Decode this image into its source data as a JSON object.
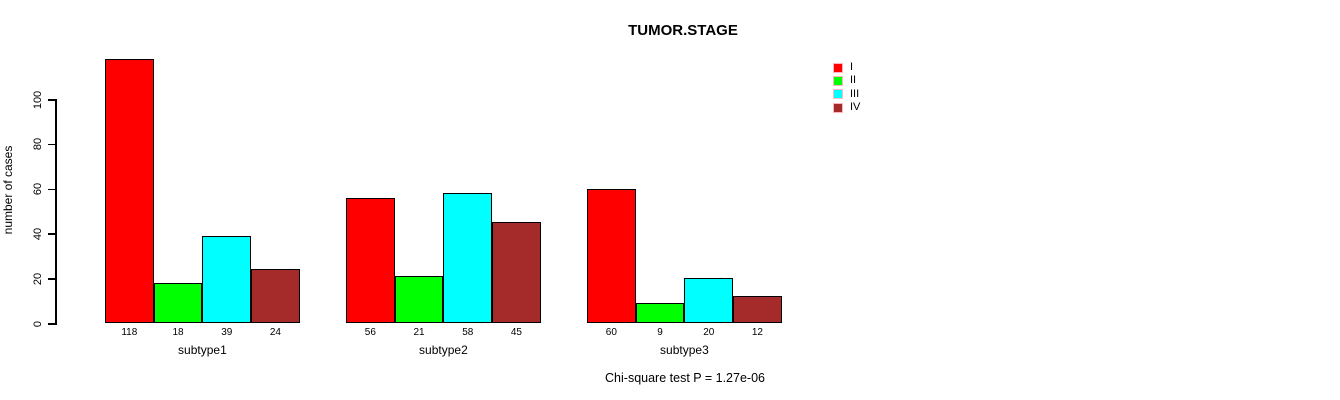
{
  "title": "TUMOR.STAGE",
  "annotation": "Chi-square test P = 1.27e-06",
  "ylabel": "number of cases",
  "legend": {
    "entries": [
      {
        "label": "I",
        "color": "#FF0000"
      },
      {
        "label": "II",
        "color": "#00FF00"
      },
      {
        "label": "III",
        "color": "#00FFFF"
      },
      {
        "label": "IV",
        "color": "#A52A2A"
      }
    ]
  },
  "chart_data": {
    "type": "bar",
    "title": "TUMOR.STAGE",
    "xlabel": "",
    "ylabel": "number of cases",
    "categories": [
      "subtype1",
      "subtype2",
      "subtype3"
    ],
    "series": [
      {
        "name": "I",
        "color": "#FF0000",
        "values": [
          118,
          56,
          60
        ]
      },
      {
        "name": "II",
        "color": "#00FF00",
        "values": [
          18,
          21,
          9
        ]
      },
      {
        "name": "III",
        "color": "#00FFFF",
        "values": [
          39,
          58,
          20
        ]
      },
      {
        "name": "IV",
        "color": "#A52A2A",
        "values": [
          24,
          45,
          12
        ]
      }
    ],
    "yticks": [
      0,
      20,
      40,
      60,
      80,
      100
    ],
    "ylim": [
      0,
      120
    ],
    "bar_value_labels": [
      [
        118,
        18,
        39,
        24
      ],
      [
        56,
        21,
        58,
        45
      ],
      [
        60,
        9,
        20,
        12
      ]
    ],
    "grid": false,
    "legend_position": "top-right",
    "annotation": "Chi-square test P = 1.27e-06"
  }
}
